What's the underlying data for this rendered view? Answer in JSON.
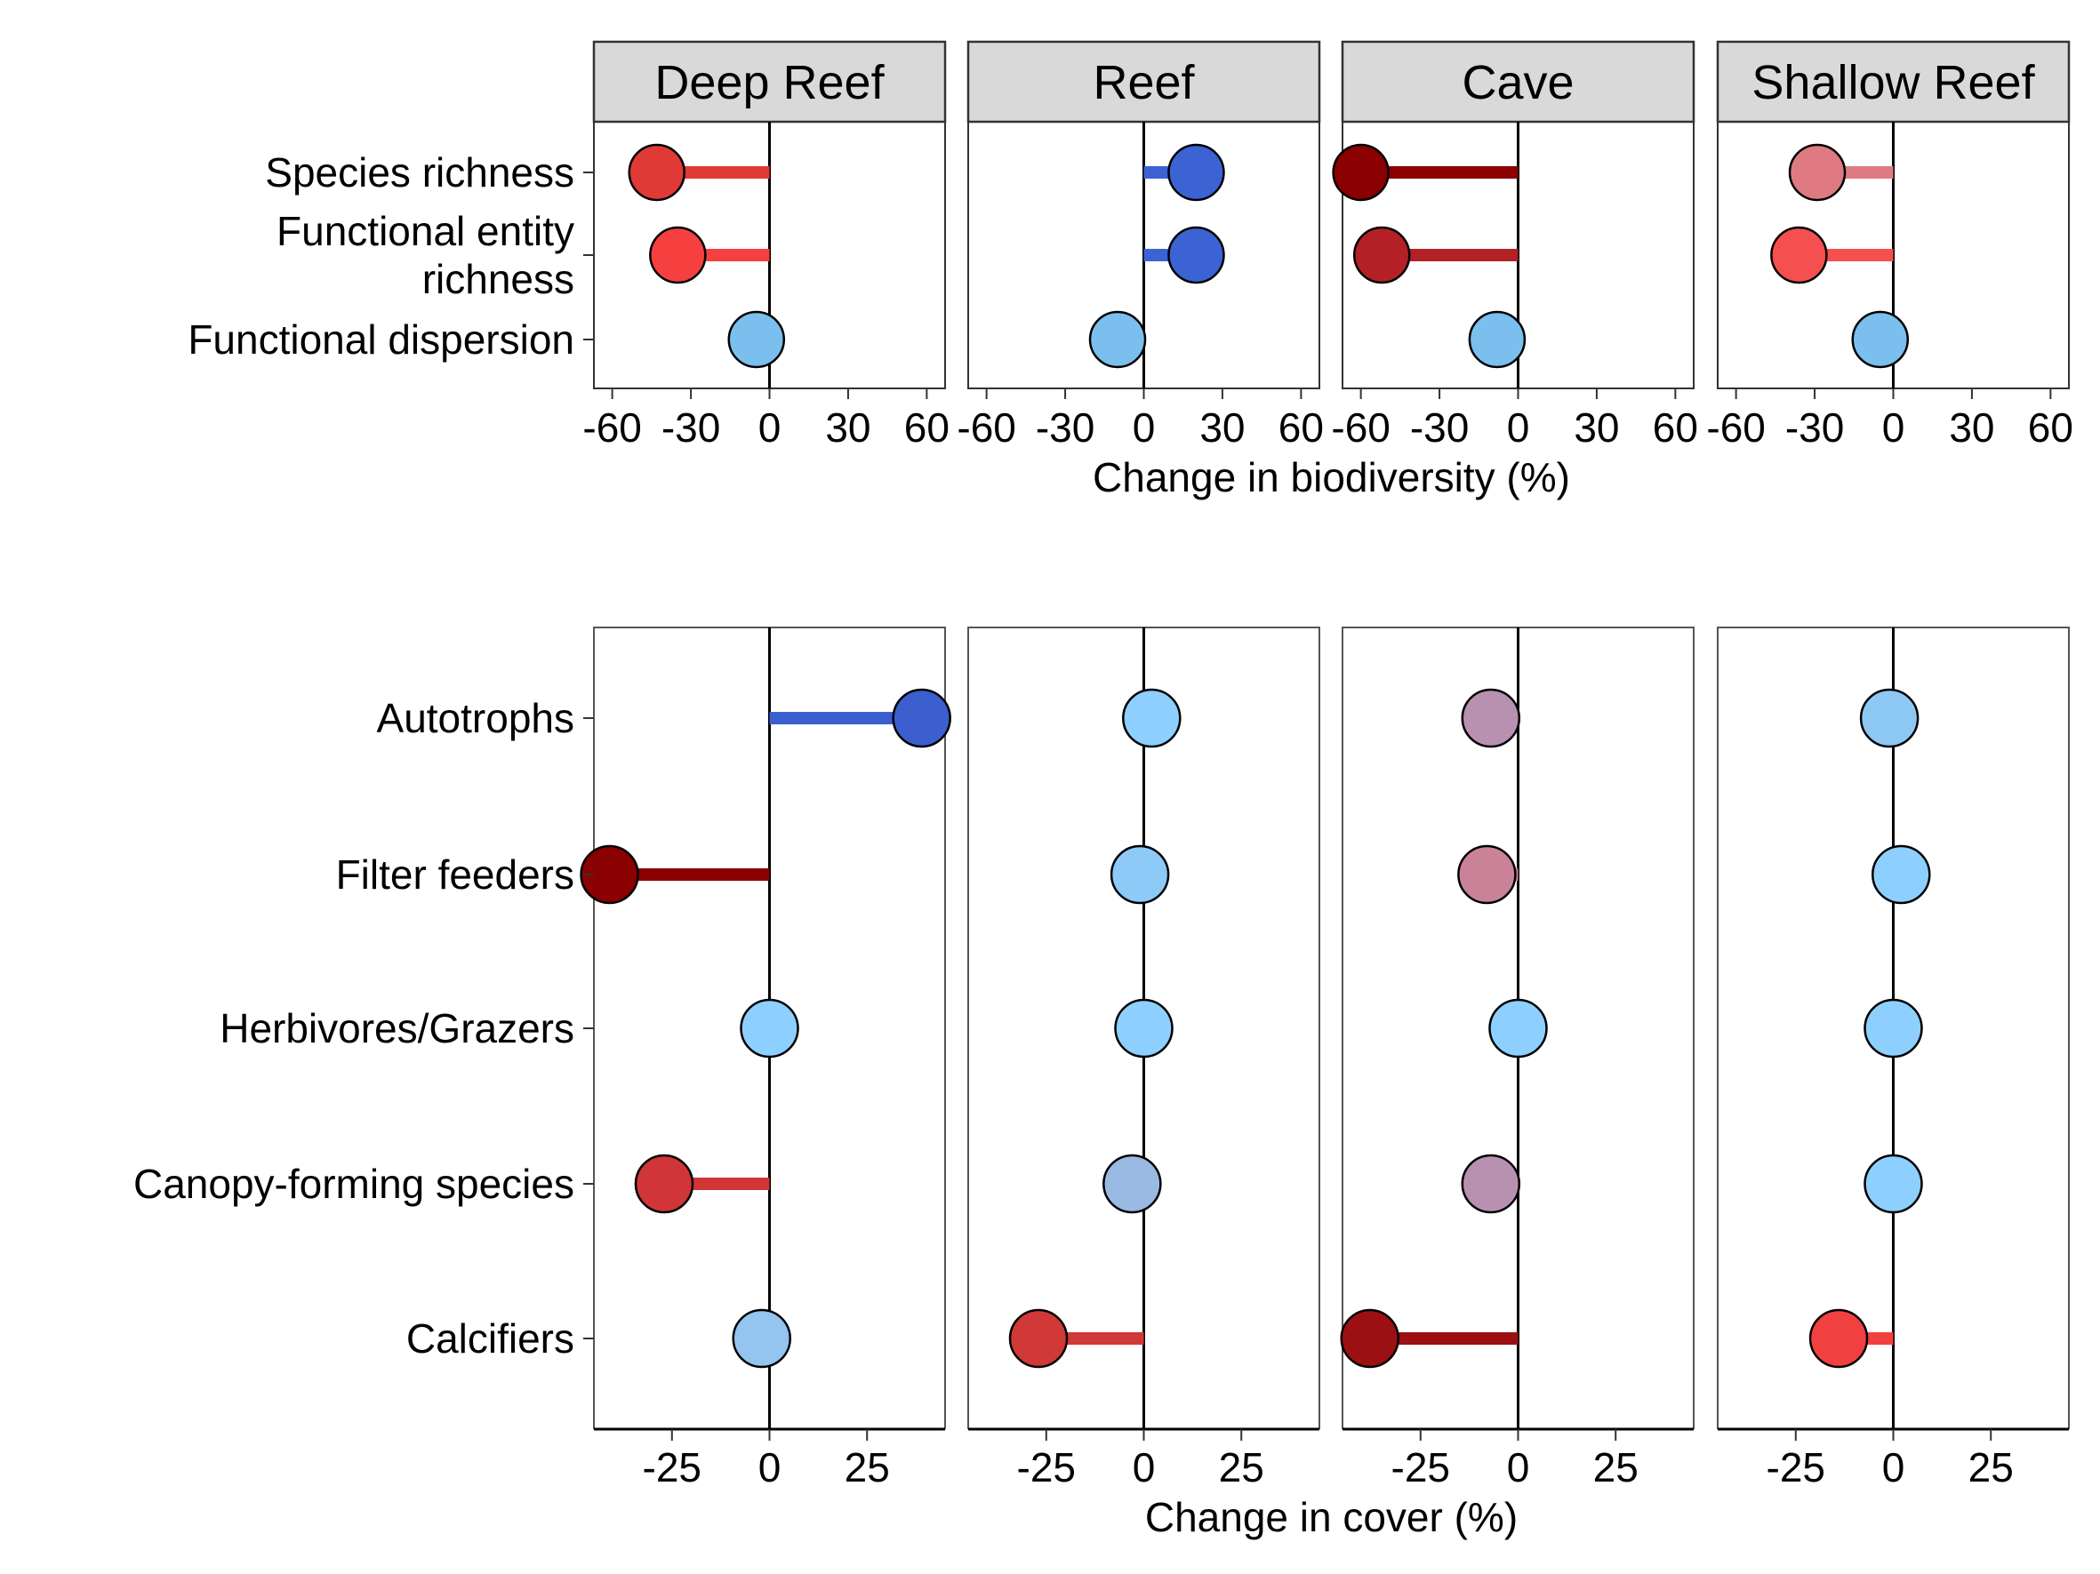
{
  "chart_data": [
    {
      "type": "lollipop",
      "xlabel": "Change in biodiversity (%)",
      "xlim": [
        -67,
        67
      ],
      "xticks": [
        -60,
        -30,
        0,
        30,
        60
      ],
      "tick_labels": [
        "-60",
        "-30",
        "0",
        "30",
        "60"
      ],
      "panels": [
        "Deep Reef",
        "Reef",
        "Cave",
        "Shallow Reef"
      ],
      "categories": [
        "Species richness",
        "Functional entity\nrichness",
        "Functional dispersion"
      ],
      "series": [
        {
          "panel": "Deep Reef",
          "values": [
            -43,
            -35,
            -5
          ],
          "colors": [
            "#e03a36",
            "#f5403f",
            "#7bbfee"
          ]
        },
        {
          "panel": "Reef",
          "values": [
            20,
            20,
            -10
          ],
          "colors": [
            "#3b63d4",
            "#3b63d4",
            "#7bbfee"
          ]
        },
        {
          "panel": "Cave",
          "values": [
            -60,
            -52,
            -8
          ],
          "colors": [
            "#8b0000",
            "#b32025",
            "#7bbfee"
          ]
        },
        {
          "panel": "Shallow Reef",
          "values": [
            -29,
            -36,
            -5
          ],
          "colors": [
            "#e07a82",
            "#f54f4f",
            "#7bbfee"
          ]
        }
      ]
    },
    {
      "type": "lollipop",
      "xlabel": "Change in cover (%)",
      "xlim": [
        -45,
        45
      ],
      "xticks": [
        -25,
        0,
        25
      ],
      "tick_labels": [
        "-25",
        "0",
        "25"
      ],
      "panels": [
        "Deep Reef",
        "Reef",
        "Cave",
        "Shallow Reef"
      ],
      "categories": [
        "Autotrophs",
        "Filter feeders",
        "Herbivores/Grazers",
        "Canopy-forming species",
        "Calcifiers"
      ],
      "series": [
        {
          "panel": "Deep Reef",
          "values": [
            39,
            -41,
            0,
            -27,
            -2
          ],
          "colors": [
            "#3b5fcf",
            "#8b0000",
            "#8dd0ff",
            "#d03538",
            "#94c4f0"
          ]
        },
        {
          "panel": "Reef",
          "values": [
            2,
            -1,
            0,
            -3,
            -27
          ],
          "colors": [
            "#8dd0ff",
            "#8dcaf8",
            "#8dd0ff",
            "#9ab9e3",
            "#d13838"
          ]
        },
        {
          "panel": "Cave",
          "values": [
            -7,
            -8,
            0,
            -7,
            -38
          ],
          "colors": [
            "#b991b0",
            "#c98297",
            "#8dd0ff",
            "#b991b0",
            "#9c0f12"
          ]
        },
        {
          "panel": "Shallow Reef",
          "values": [
            -1,
            2,
            0,
            0,
            -14
          ],
          "colors": [
            "#8dc8f5",
            "#8dd0ff",
            "#8dd0ff",
            "#8dd0ff",
            "#f23f3f"
          ]
        }
      ]
    }
  ]
}
